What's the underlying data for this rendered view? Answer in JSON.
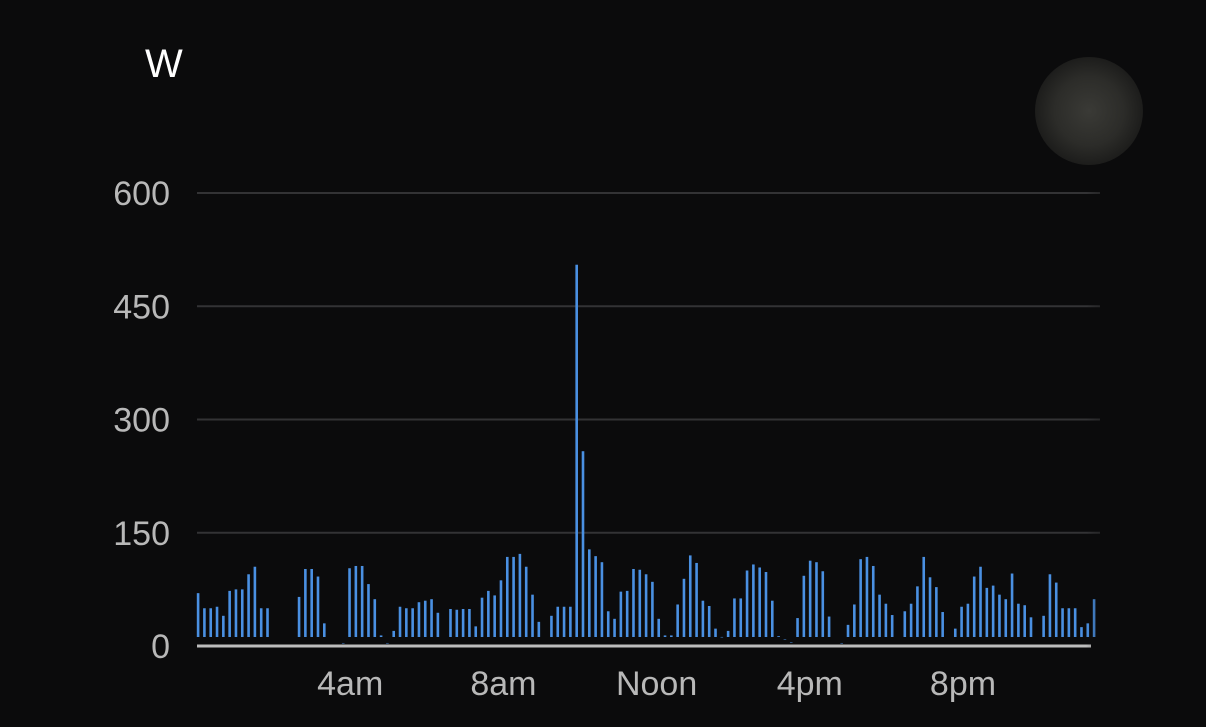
{
  "chart_data": {
    "type": "bar",
    "unit_label": "W",
    "ylim": [
      0,
      600
    ],
    "y_ticks": [
      "600",
      "450",
      "300",
      "150",
      "0"
    ],
    "y_tick_values": [
      600,
      450,
      300,
      150,
      0
    ],
    "x_ticks": [
      "4am",
      "8am",
      "Noon",
      "4pm",
      "8pm"
    ],
    "x_tick_hours": [
      4,
      8,
      12,
      16,
      20
    ],
    "x_range_hours": [
      0,
      23.5
    ],
    "grid": true,
    "bar_color": "#4a90e2",
    "values": [
      70,
      50,
      50,
      52,
      40,
      73,
      75,
      75,
      95,
      105,
      50,
      50,
      0,
      0,
      0,
      0,
      65,
      102,
      102,
      92,
      30,
      0,
      0,
      4,
      103,
      106,
      106,
      82,
      62,
      14,
      4,
      20,
      52,
      50,
      50,
      58,
      60,
      62,
      44,
      0,
      49,
      48,
      49,
      49,
      26,
      64,
      73,
      67,
      87,
      118,
      118,
      122,
      105,
      68,
      32,
      0,
      40,
      52,
      52,
      52,
      505,
      258,
      128,
      119,
      111,
      46,
      36,
      72,
      73,
      102,
      101,
      95,
      85,
      36,
      14,
      14,
      55,
      89,
      120,
      110,
      60,
      53,
      23,
      12,
      20,
      63,
      63,
      100,
      108,
      104,
      98,
      60,
      13,
      9,
      5,
      37,
      93,
      113,
      111,
      99,
      39,
      0,
      4,
      28,
      55,
      115,
      118,
      106,
      68,
      56,
      41,
      0,
      46,
      56,
      79,
      118,
      91,
      78,
      45,
      0,
      23,
      52,
      56,
      92,
      105,
      77,
      80,
      68,
      62,
      96,
      56,
      54,
      38,
      0,
      40,
      95,
      84,
      50,
      50,
      50,
      25,
      30,
      62
    ]
  },
  "controls": {
    "scroll_knob": "round-scroll-knob-icon"
  }
}
